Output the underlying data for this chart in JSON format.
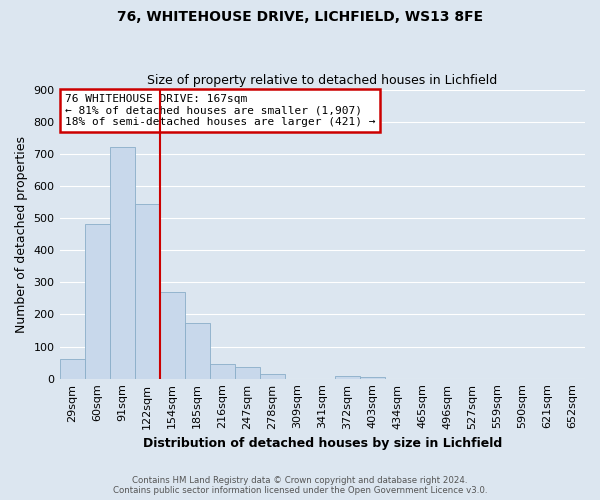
{
  "title_line1": "76, WHITEHOUSE DRIVE, LICHFIELD, WS13 8FE",
  "title_line2": "Size of property relative to detached houses in Lichfield",
  "xlabel": "Distribution of detached houses by size in Lichfield",
  "ylabel": "Number of detached properties",
  "bar_color": "#c8d8eb",
  "bar_edge_color": "#8aaec8",
  "categories": [
    "29sqm",
    "60sqm",
    "91sqm",
    "122sqm",
    "154sqm",
    "185sqm",
    "216sqm",
    "247sqm",
    "278sqm",
    "309sqm",
    "341sqm",
    "372sqm",
    "403sqm",
    "434sqm",
    "465sqm",
    "496sqm",
    "527sqm",
    "559sqm",
    "590sqm",
    "621sqm",
    "652sqm"
  ],
  "values": [
    60,
    480,
    720,
    545,
    270,
    173,
    47,
    35,
    14,
    0,
    0,
    8,
    5,
    0,
    0,
    0,
    0,
    0,
    0,
    0,
    0
  ],
  "ylim": [
    0,
    900
  ],
  "yticks": [
    0,
    100,
    200,
    300,
    400,
    500,
    600,
    700,
    800,
    900
  ],
  "vline_x": 3.5,
  "vline_color": "#cc0000",
  "annotation_text": "76 WHITEHOUSE DRIVE: 167sqm\n← 81% of detached houses are smaller (1,907)\n18% of semi-detached houses are larger (421) →",
  "annotation_box_color": "white",
  "annotation_box_edge": "#cc0000",
  "footer_line1": "Contains HM Land Registry data © Crown copyright and database right 2024.",
  "footer_line2": "Contains public sector information licensed under the Open Government Licence v3.0.",
  "background_color": "#dce6f0",
  "plot_bg_color": "#dce6f0",
  "grid_color": "white",
  "title_fontsize": 10,
  "subtitle_fontsize": 9,
  "axis_label_fontsize": 9,
  "tick_fontsize": 8
}
